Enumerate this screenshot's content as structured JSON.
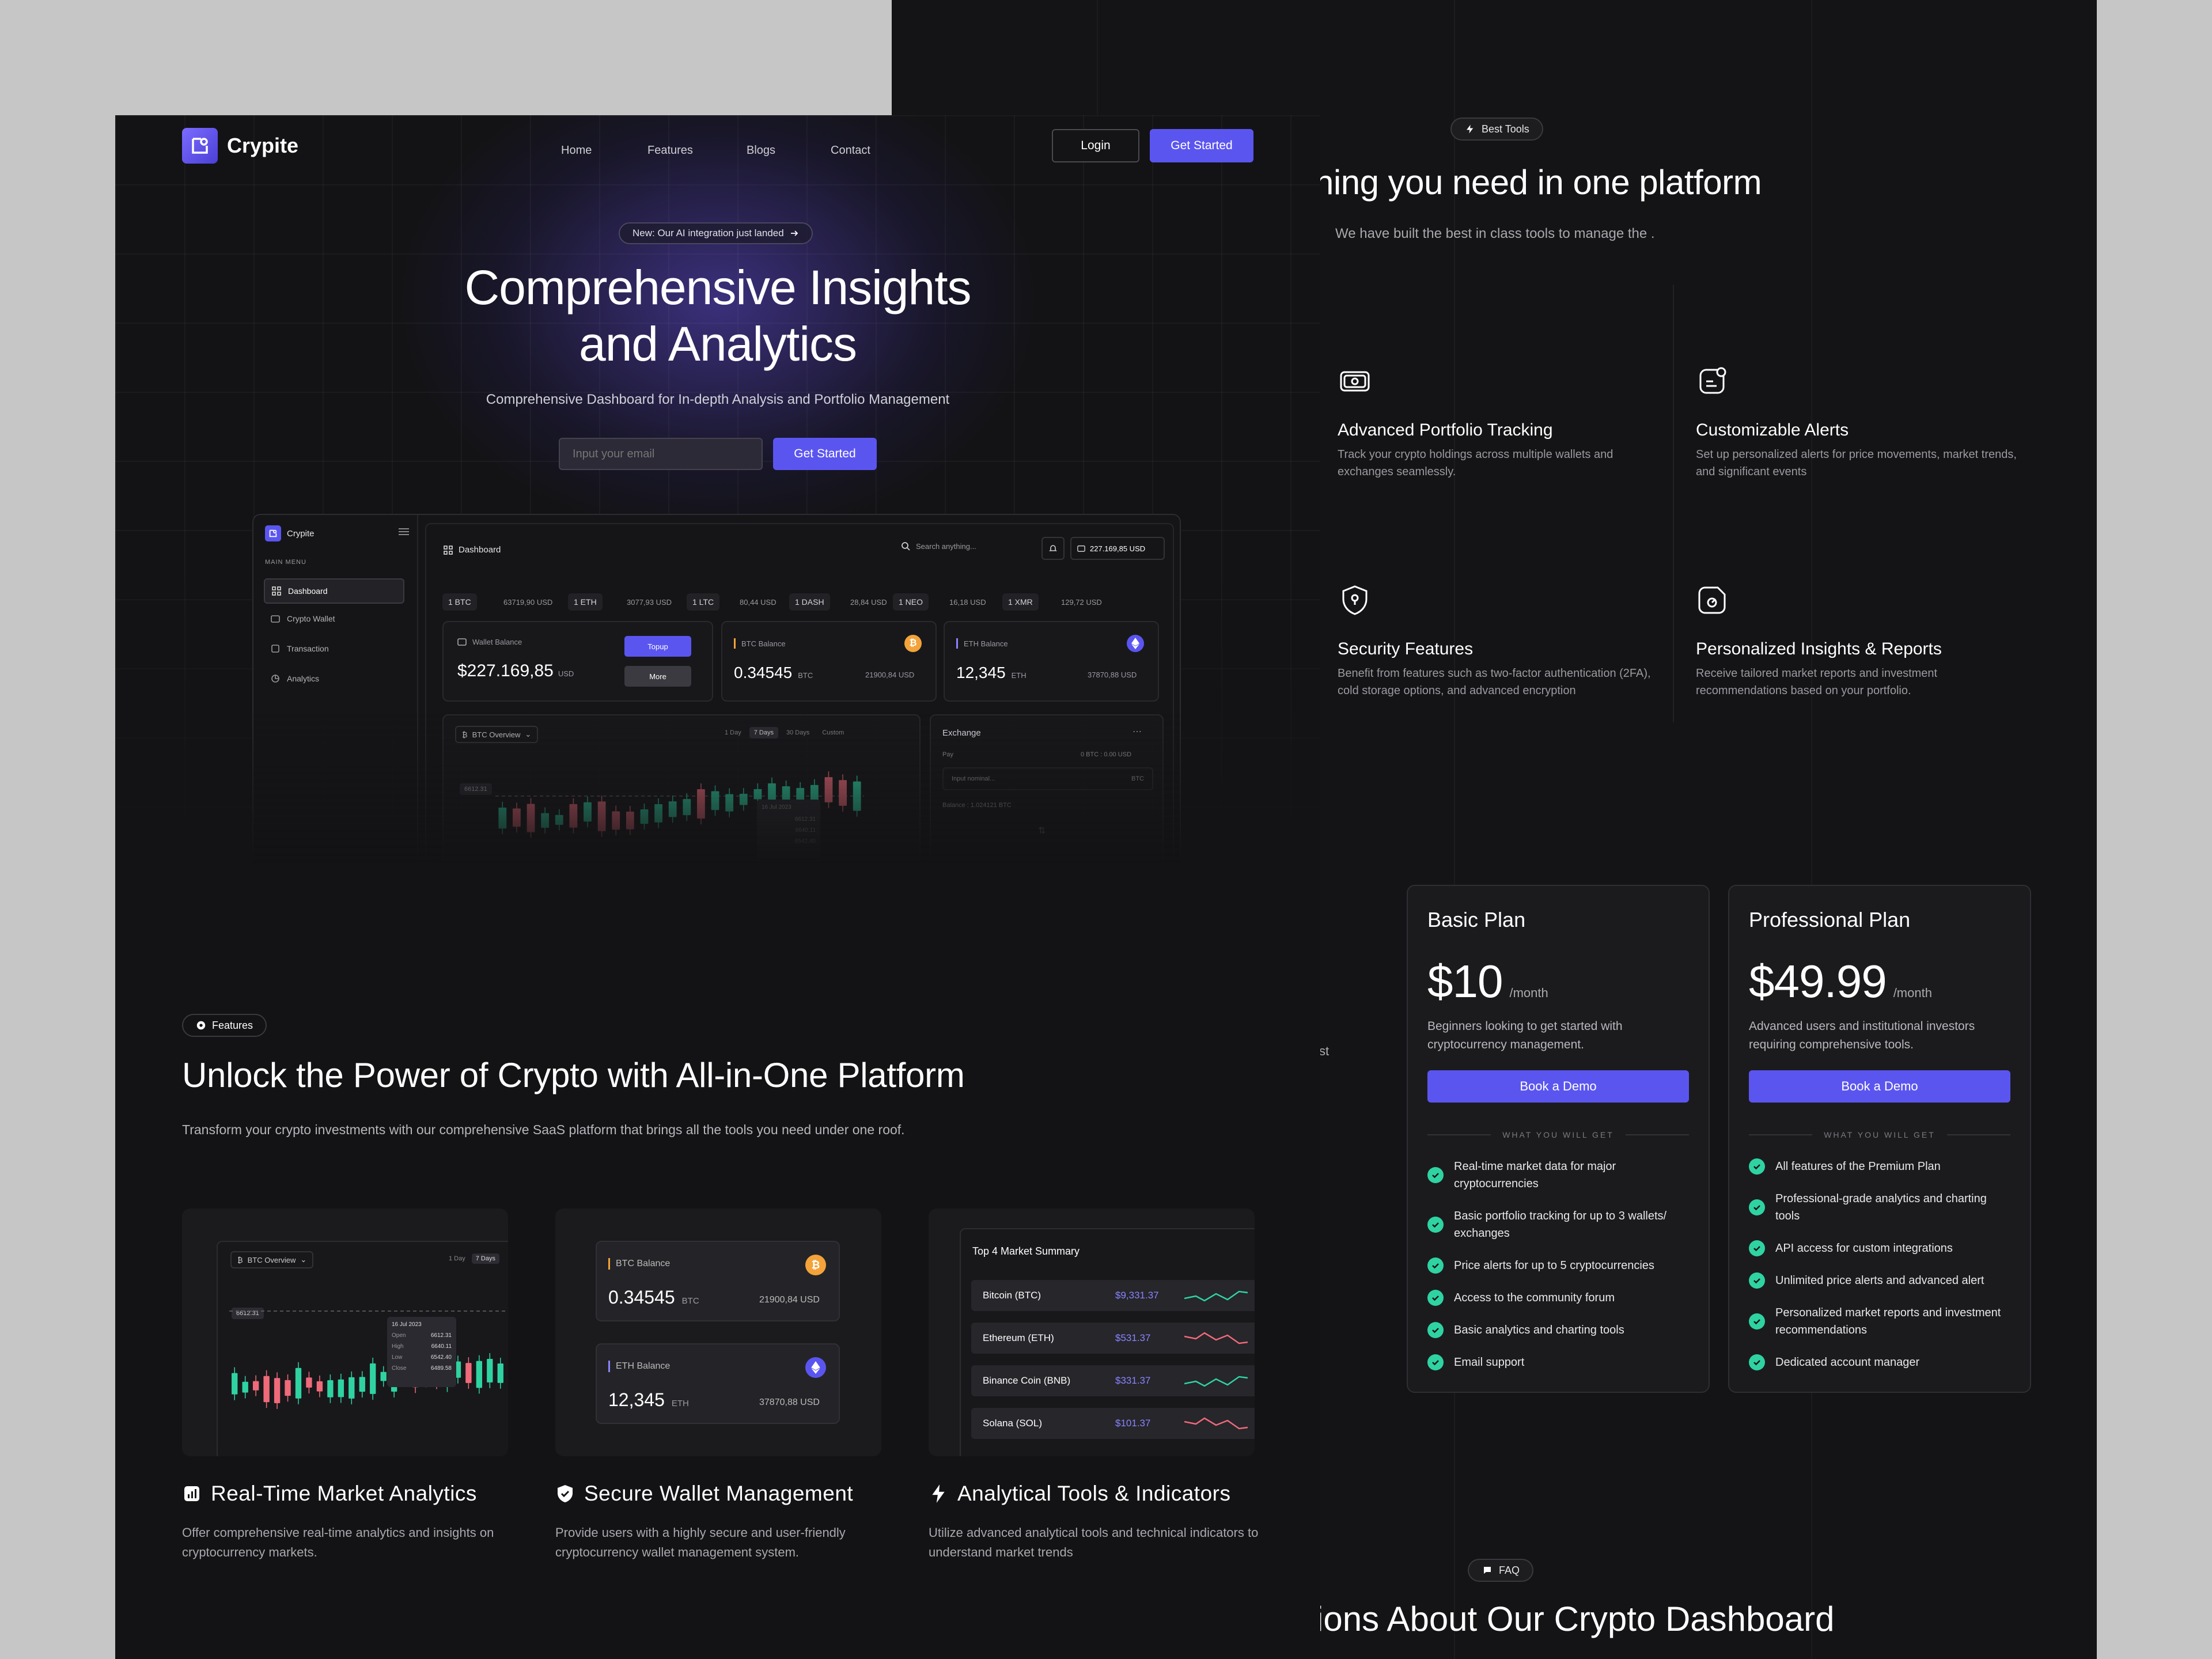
{
  "back_page": {
    "tools_pill": "Best Tools",
    "tools_title": "hing you need in one platform",
    "tools_subtitle": "We have built the best in class tools to manage the .",
    "features": [
      {
        "icon": "wallet-icon",
        "title": "Advanced Portfolio Tracking",
        "desc": "Track your crypto holdings across multiple wallets and exchanges seamlessly."
      },
      {
        "icon": "alert-icon",
        "title": "Customizable Alerts",
        "desc": "Set up personalized alerts for price movements, market trends, and significant events"
      },
      {
        "icon": "shield-lock-icon",
        "title": "Security Features",
        "desc": "Benefit from features such as two-factor authentication (2FA), cold storage options, and advanced encryption"
      },
      {
        "icon": "report-icon",
        "title": "Personalized Insights & Reports",
        "desc": "Receive tailored market reports and investment recommendations based on your portfolio."
      }
    ],
    "fragment_text": "st",
    "plans": [
      {
        "name": "Basic Plan",
        "price": "$10",
        "period": "/month",
        "desc": "Beginners looking to get started with cryptocurrency management.",
        "cta": "Book a Demo",
        "divider": "WHAT YOU WILL GET",
        "items": [
          "Real-time market data for major cryptocurrencies",
          "Basic portfolio tracking for up to 3 wallets/ exchanges",
          "Price alerts for up to 5 cryptocurrencies",
          "Access to the community forum",
          "Basic analytics and charting tools",
          "Email support"
        ]
      },
      {
        "name": "Professional Plan",
        "price": "$49.99",
        "period": "/month",
        "desc": "Advanced users and institutional investors requiring comprehensive tools.",
        "cta": "Book a Demo",
        "divider": "WHAT YOU WILL GET",
        "items": [
          "All features of the Premium Plan",
          "Professional-grade analytics and charting tools",
          "API access for custom integrations",
          "Unlimited price alerts and advanced alert",
          "Personalized market reports and investment recommendations",
          "Dedicated account manager"
        ]
      }
    ],
    "faq_pill": "FAQ",
    "faq_title": "ions About Our Crypto Dashboard"
  },
  "nav": {
    "brand": "Crypite",
    "links": [
      "Home",
      "Features",
      "Blogs",
      "Contact"
    ],
    "login": "Login",
    "get_started": "Get Started"
  },
  "hero": {
    "badge": "New: Our AI integration just landed",
    "title_line1": "Comprehensive Insights",
    "title_line2": "and Analytics",
    "subtitle": "Comprehensive Dashboard for In-depth Analysis and Portfolio Management",
    "email_placeholder": "Input your email",
    "cta": "Get Started"
  },
  "dashboard": {
    "brand": "Crypite",
    "menu_label": "MAIN MENU",
    "menu": [
      "Dashboard",
      "Crypto Wallet",
      "Transaction",
      "Analytics"
    ],
    "header_title": "Dashboard",
    "search_placeholder": "Search anything...",
    "balance_chip": "227.169,85 USD",
    "tickers": [
      {
        "sym": "1 BTC",
        "val": "63719,90 USD"
      },
      {
        "sym": "1 ETH",
        "val": "3077,93 USD"
      },
      {
        "sym": "1 LTC",
        "val": "80,44 USD"
      },
      {
        "sym": "1 DASH",
        "val": "28,84 USD"
      },
      {
        "sym": "1 NEO",
        "val": "16,18 USD"
      },
      {
        "sym": "1 XMR",
        "val": "129,72 USD"
      }
    ],
    "wallet_label": "Wallet Balance",
    "wallet_value": "$227.169,85",
    "wallet_unit": "USD",
    "topup": "Topup",
    "more": "More",
    "btc_label": "BTC Balance",
    "btc_value": "0.34545",
    "btc_unit": "BTC",
    "btc_usd": "21900,84 USD",
    "eth_label": "ETH Balance",
    "eth_value": "12,345",
    "eth_unit": "ETH",
    "eth_usd": "37870,88 USD",
    "overview_label": "BTC Overview",
    "ranges": [
      "1 Day",
      "7 Days",
      "30 Days",
      "Custom"
    ],
    "price_tag": "6612.31",
    "tooltip_date": "16 Jul 2023",
    "tooltip_vals": [
      "6612.31",
      "6640.11",
      "6542.40"
    ],
    "exchange_title": "Exchange",
    "exchange_pay": "Pay",
    "exchange_range": "0 BTC : 0.00 USD",
    "exchange_input": "Input nominal...",
    "exchange_coin": "BTC",
    "exchange_balance": "Balance : 1.024121 BTC"
  },
  "features": {
    "pill": "Features",
    "title": "Unlock the Power of Crypto with All-in-One Platform",
    "subtitle": "Transform your crypto investments with our comprehensive SaaS platform that brings all the tools you need under one roof.",
    "chart_card": {
      "label": "BTC Overview",
      "ranges": [
        "1 Day",
        "7 Days"
      ],
      "price_tag": "6612.31",
      "tooltip_date": "16 Jul 2023",
      "tooltip_rows": [
        [
          "Open",
          "6612.31"
        ],
        [
          "High",
          "6640.11"
        ],
        [
          "Low",
          "6542.40"
        ],
        [
          "Close",
          "6489.58"
        ]
      ]
    },
    "wallet_card": {
      "btc_label": "BTC Balance",
      "btc_value": "0.34545",
      "btc_unit": "BTC",
      "btc_usd": "21900,84 USD",
      "eth_label": "ETH Balance",
      "eth_value": "12,345",
      "eth_unit": "ETH",
      "eth_usd": "37870,88 USD"
    },
    "market_card": {
      "title": "Top 4 Market Summary",
      "rows": [
        {
          "name": "Bitcoin (BTC)",
          "price": "$9,331.37",
          "trend": "up"
        },
        {
          "name": "Ethereum (ETH)",
          "price": "$531.37",
          "trend": "down"
        },
        {
          "name": "Binance Coin (BNB)",
          "price": "$331.37",
          "trend": "up"
        },
        {
          "name": "Solana (SOL)",
          "price": "$101.37",
          "trend": "down"
        }
      ]
    },
    "items": [
      {
        "icon": "analytics-icon",
        "title": "Real-Time Market Analytics",
        "desc": "Offer comprehensive real-time analytics and insights on cryptocurrency markets."
      },
      {
        "icon": "shield-check-icon",
        "title": "Secure Wallet Management",
        "desc": "Provide users with a highly secure and user-friendly cryptocurrency wallet management system."
      },
      {
        "icon": "lightning-icon",
        "title": "Analytical Tools & Indicators",
        "desc": "Utilize advanced analytical tools and technical indicators to understand market trends"
      }
    ]
  },
  "colors": {
    "accent": "#5b55f0",
    "up": "#2fd3a2",
    "down": "#f06a7a",
    "bg": "#131315",
    "outer": "#c6c6c6"
  }
}
